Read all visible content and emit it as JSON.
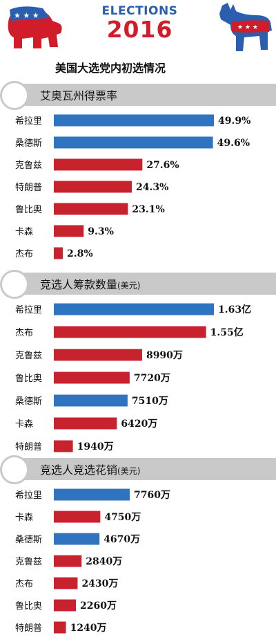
{
  "header": {
    "banner_line1": "ELECTIONS",
    "banner_line2": "2016",
    "subtitle": "美国大选党内初选情况",
    "icons": [
      "republican-elephant-icon",
      "democrat-donkey-icon"
    ]
  },
  "colors": {
    "democrat": "#2e74c0",
    "republican": "#c8222e",
    "section_bar": "#c9c9c9"
  },
  "chart_data": [
    {
      "type": "bar",
      "title": "艾奥瓦州得票率",
      "unit_note": "",
      "categories": [
        "希拉里",
        "桑德斯",
        "克鲁兹",
        "特朗普",
        "鲁比奥",
        "卡森",
        "杰布"
      ],
      "values": [
        49.9,
        49.6,
        27.6,
        24.3,
        23.1,
        9.3,
        2.8
      ],
      "labels": [
        "49.9%",
        "49.6%",
        "27.6%",
        "24.3%",
        "23.1%",
        "9.3%",
        "2.8%"
      ],
      "party": [
        "D",
        "D",
        "R",
        "R",
        "R",
        "R",
        "R"
      ]
    },
    {
      "type": "bar",
      "title": "竞选人筹款数量",
      "unit_note": "(美元)",
      "categories": [
        "希拉里",
        "杰布",
        "克鲁兹",
        "鲁比奥",
        "桑德斯",
        "卡森",
        "特朗普"
      ],
      "values": [
        163000000,
        155000000,
        89900000,
        77200000,
        75100000,
        64200000,
        19400000
      ],
      "labels": [
        "1.63亿",
        "1.55亿",
        "8990万",
        "7720万",
        "7510万",
        "6420万",
        "1940万"
      ],
      "party": [
        "D",
        "R",
        "R",
        "R",
        "D",
        "R",
        "R"
      ]
    },
    {
      "type": "bar",
      "title": "竞选人竞选花销",
      "unit_note": "(美元)",
      "categories": [
        "希拉里",
        "卡森",
        "桑德斯",
        "克鲁兹",
        "杰布",
        "鲁比奥",
        "特朗普"
      ],
      "values": [
        77600000,
        47500000,
        46700000,
        28400000,
        24300000,
        22600000,
        12400000
      ],
      "labels": [
        "7760万",
        "4750万",
        "4670万",
        "2840万",
        "2430万",
        "2260万",
        "1240万"
      ],
      "party": [
        "D",
        "R",
        "D",
        "R",
        "R",
        "R",
        "R"
      ]
    }
  ]
}
